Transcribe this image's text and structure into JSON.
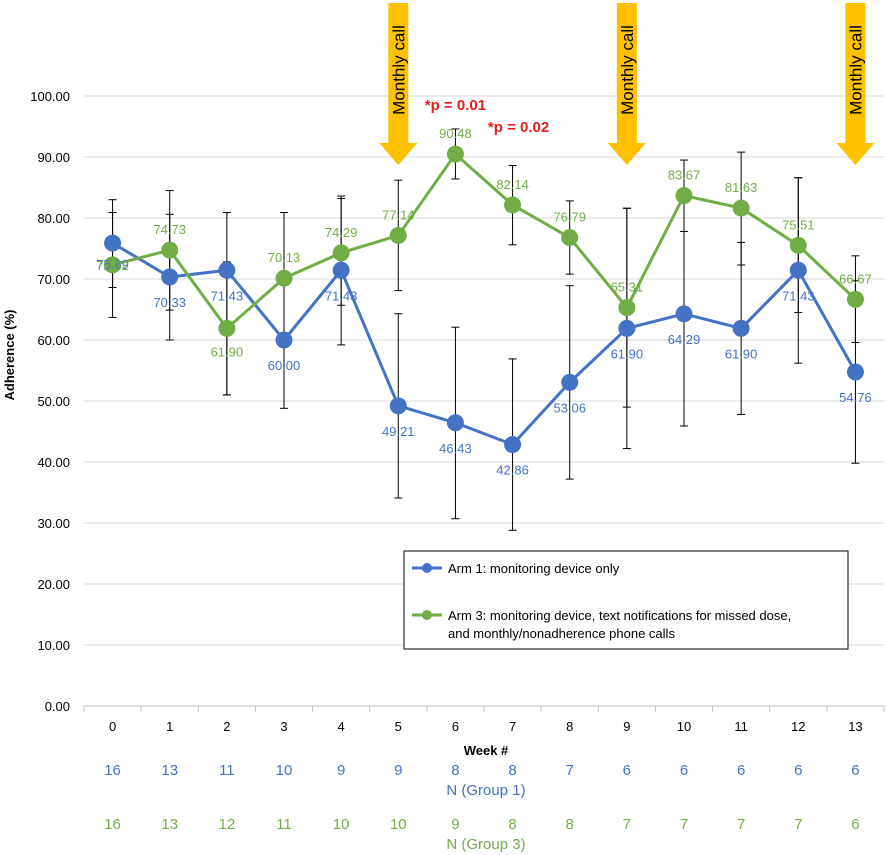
{
  "chart_data": {
    "type": "line",
    "xlabel": "Week #",
    "ylabel": "Adherence (%)",
    "ylim": [
      0,
      100
    ],
    "y_ticks": [
      "0.00",
      "10.00",
      "20.00",
      "30.00",
      "40.00",
      "50.00",
      "60.00",
      "70.00",
      "80.00",
      "90.00",
      "100.00"
    ],
    "categories": [
      "0",
      "1",
      "2",
      "3",
      "4",
      "5",
      "6",
      "7",
      "8",
      "9",
      "10",
      "11",
      "12",
      "13"
    ],
    "grid": true,
    "legend_position": "center-bottom",
    "series": [
      {
        "name": "Arm 1: monitoring device only",
        "color": "#4472c4",
        "values": [
          75.89,
          70.33,
          71.43,
          60.0,
          71.43,
          49.21,
          46.43,
          42.86,
          53.06,
          61.9,
          64.29,
          61.9,
          71.43,
          54.76
        ],
        "labels": [
          "75.89",
          "70.33",
          "71.43",
          "60.00",
          "71.43",
          "49.21",
          "46.43",
          "42.86",
          "53.06",
          "61.90",
          "64.29",
          "61.90",
          "71.43",
          "54.76"
        ],
        "err_low": [
          68.6,
          60.0,
          51.0,
          48.8,
          59.2,
          34.1,
          30.7,
          28.8,
          37.2,
          42.2,
          45.9,
          47.8,
          56.2,
          39.8
        ],
        "err_high": [
          83.0,
          80.6,
          80.9,
          71.1,
          83.6,
          64.3,
          62.1,
          56.9,
          68.9,
          81.6,
          82.7,
          76.0,
          86.6,
          69.7
        ]
      },
      {
        "name": "Arm 3: monitoring device, text notifications for missed dose, and monthly/nonadherence phone calls",
        "name_lines": [
          "Arm 3: monitoring device, text notifications for missed dose,",
          "and monthly/nonadherence phone calls"
        ],
        "color": "#70ad47",
        "values": [
          72.32,
          74.73,
          61.9,
          70.13,
          74.29,
          77.14,
          90.48,
          82.14,
          76.79,
          65.31,
          83.67,
          81.63,
          75.51,
          66.67
        ],
        "labels": [
          "72.32",
          "74.73",
          "61.90",
          "70.13",
          "74.29",
          "77.14",
          "90.48",
          "82.14",
          "76.79",
          "65.31",
          "83.67",
          "81.63",
          "75.51",
          "66.67"
        ],
        "err_low": [
          63.7,
          64.9,
          51.0,
          59.3,
          65.7,
          68.1,
          86.4,
          75.6,
          70.8,
          49.0,
          77.8,
          72.3,
          64.5,
          59.6
        ],
        "err_high": [
          80.9,
          84.5,
          72.8,
          80.9,
          83.2,
          86.2,
          94.6,
          88.6,
          82.8,
          81.6,
          89.5,
          90.8,
          86.6,
          73.8
        ]
      }
    ],
    "annotations": {
      "pvalues": [
        {
          "text": "*p = 0.01",
          "week": 6
        },
        {
          "text": "*p = 0.02",
          "week": 7
        }
      ],
      "monthly_calls": {
        "label": "Monthly call",
        "weeks": [
          5,
          9,
          13
        ],
        "color": "#ffc000"
      }
    },
    "n_rows": [
      {
        "title": "N (Group 1)",
        "color": "#4472c4",
        "values": [
          "16",
          "13",
          "11",
          "10",
          "9",
          "9",
          "8",
          "8",
          "7",
          "6",
          "6",
          "6",
          "6",
          "6"
        ]
      },
      {
        "title": "N (Group 3)",
        "color": "#70ad47",
        "values": [
          "16",
          "13",
          "12",
          "11",
          "10",
          "10",
          "9",
          "8",
          "8",
          "7",
          "7",
          "7",
          "7",
          "6"
        ]
      }
    ]
  }
}
